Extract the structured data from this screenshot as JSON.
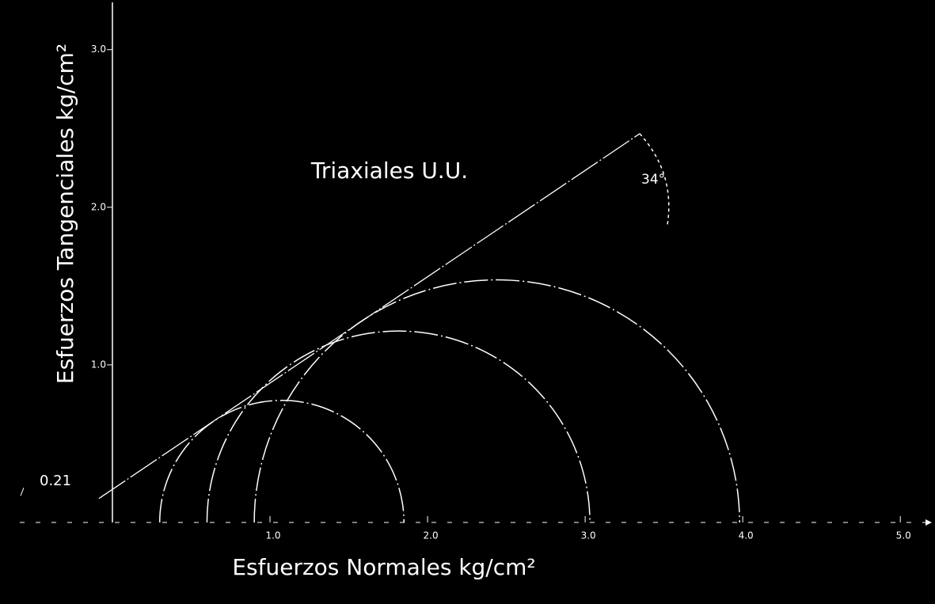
{
  "chart_data": {
    "type": "mohr",
    "title": "Triaxiales U.U.",
    "x_label": "Esfuerzos Normales kg/cm²",
    "y_label": "Esfuerzos Tangenciales kg/cm²",
    "circles": [
      {
        "sigma3": 0.3,
        "sigma1": 1.85
      },
      {
        "sigma3": 0.6,
        "sigma1": 3.03
      },
      {
        "sigma3": 0.9,
        "sigma1": 3.98
      }
    ],
    "cohesion": 0.21,
    "friction_angle": {
      "value": 34,
      "label": "34°"
    },
    "color": "#ffffff",
    "xlim": [
      0,
      5.2
    ],
    "ylim": [
      0,
      3.3
    ],
    "xticks": [
      {
        "value": 1,
        "label": "1.0"
      },
      {
        "value": 2,
        "label": "2.0"
      },
      {
        "value": 3,
        "label": "3.0"
      },
      {
        "value": 4,
        "label": "4.0"
      },
      {
        "value": 5,
        "label": "5.0"
      }
    ],
    "yticks": [
      {
        "value": 1,
        "label": "1.0"
      },
      {
        "value": 2,
        "label": "2.0"
      },
      {
        "value": 3,
        "label": "3.0"
      }
    ]
  }
}
